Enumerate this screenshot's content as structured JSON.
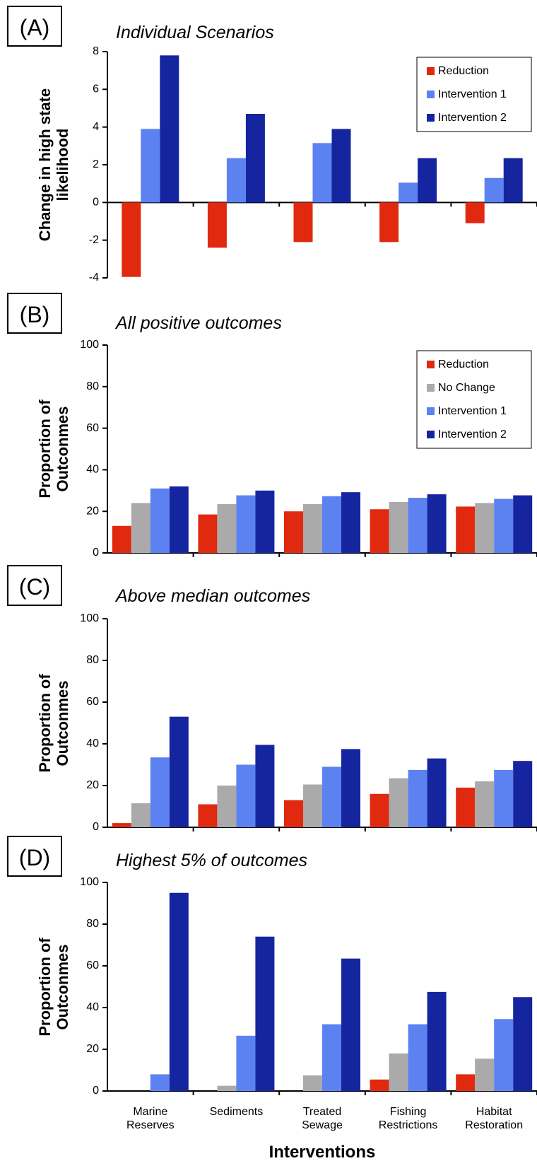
{
  "chart_data": [
    {
      "type": "bar",
      "panel": "(A)",
      "title": "Individual Scenarios",
      "ylabel": "Change in high state likelihood",
      "series": [
        {
          "name": "Reduction",
          "color": "#e0290f",
          "values": [
            -3.95,
            -2.4,
            -2.1,
            -2.1,
            -1.1
          ]
        },
        {
          "name": "Intervention 1",
          "color": "#5b82f0",
          "values": [
            3.9,
            2.35,
            3.15,
            1.05,
            1.3
          ]
        },
        {
          "name": "Intervention 2",
          "color": "#1525a0",
          "values": [
            7.8,
            4.7,
            3.9,
            2.35,
            2.35
          ]
        }
      ],
      "ylim": [
        -4,
        8
      ],
      "yticks": [
        -4,
        -2,
        0,
        2,
        4,
        6,
        8
      ],
      "legend": "upper right"
    },
    {
      "type": "bar",
      "panel": "(B)",
      "title": "All positive outcomes",
      "ylabel": "Proportion of Outconmes",
      "series": [
        {
          "name": "Reduction",
          "color": "#e0290f",
          "values": [
            13,
            18.5,
            20,
            21,
            22.3
          ]
        },
        {
          "name": "No Change",
          "color": "#aaaaaa",
          "values": [
            24,
            23.5,
            23.5,
            24.5,
            24
          ]
        },
        {
          "name": "Intervention 1",
          "color": "#5b82f0",
          "values": [
            31,
            27.7,
            27.3,
            26.5,
            26
          ]
        },
        {
          "name": "Intervention 2",
          "color": "#1525a0",
          "values": [
            32,
            30,
            29.2,
            28.2,
            27.7
          ]
        }
      ],
      "ylim": [
        0,
        100
      ],
      "yticks": [
        0,
        20,
        40,
        60,
        80,
        100
      ],
      "legend": "upper right"
    },
    {
      "type": "bar",
      "panel": "(C)",
      "title": "Above median outcomes",
      "ylabel": "Proportion of Outconmes",
      "series": [
        {
          "color": "#e0290f",
          "values": [
            2,
            11,
            13,
            16,
            19
          ]
        },
        {
          "color": "#aaaaaa",
          "values": [
            11.5,
            20,
            20.5,
            23.5,
            22
          ]
        },
        {
          "color": "#5b82f0",
          "values": [
            33.5,
            30,
            29,
            27.5,
            27.5
          ]
        },
        {
          "color": "#1525a0",
          "values": [
            53,
            39.5,
            37.5,
            33,
            31.8
          ]
        }
      ],
      "ylim": [
        0,
        100
      ],
      "yticks": [
        0,
        20,
        40,
        60,
        80,
        100
      ]
    },
    {
      "type": "bar",
      "panel": "(D)",
      "title": "Highest 5% of outcomes",
      "ylabel": "Proportion of Outconmes",
      "xlabel": "Interventions",
      "categories": [
        "Marine Reserves",
        "Sediments",
        "Treated Sewage",
        "Fishing Restrictions",
        "Habitat Restoration"
      ],
      "series": [
        {
          "color": "#e0290f",
          "values": [
            0,
            0,
            0,
            5.5,
            8
          ]
        },
        {
          "color": "#aaaaaa",
          "values": [
            0,
            2.5,
            7.5,
            18,
            15.5
          ]
        },
        {
          "color": "#5b82f0",
          "values": [
            8,
            26.5,
            32,
            32,
            34.5
          ]
        },
        {
          "color": "#1525a0",
          "values": [
            95,
            74,
            63.5,
            47.5,
            45
          ]
        }
      ],
      "ylim": [
        0,
        100
      ],
      "yticks": [
        0,
        20,
        40,
        60,
        80,
        100
      ]
    }
  ]
}
